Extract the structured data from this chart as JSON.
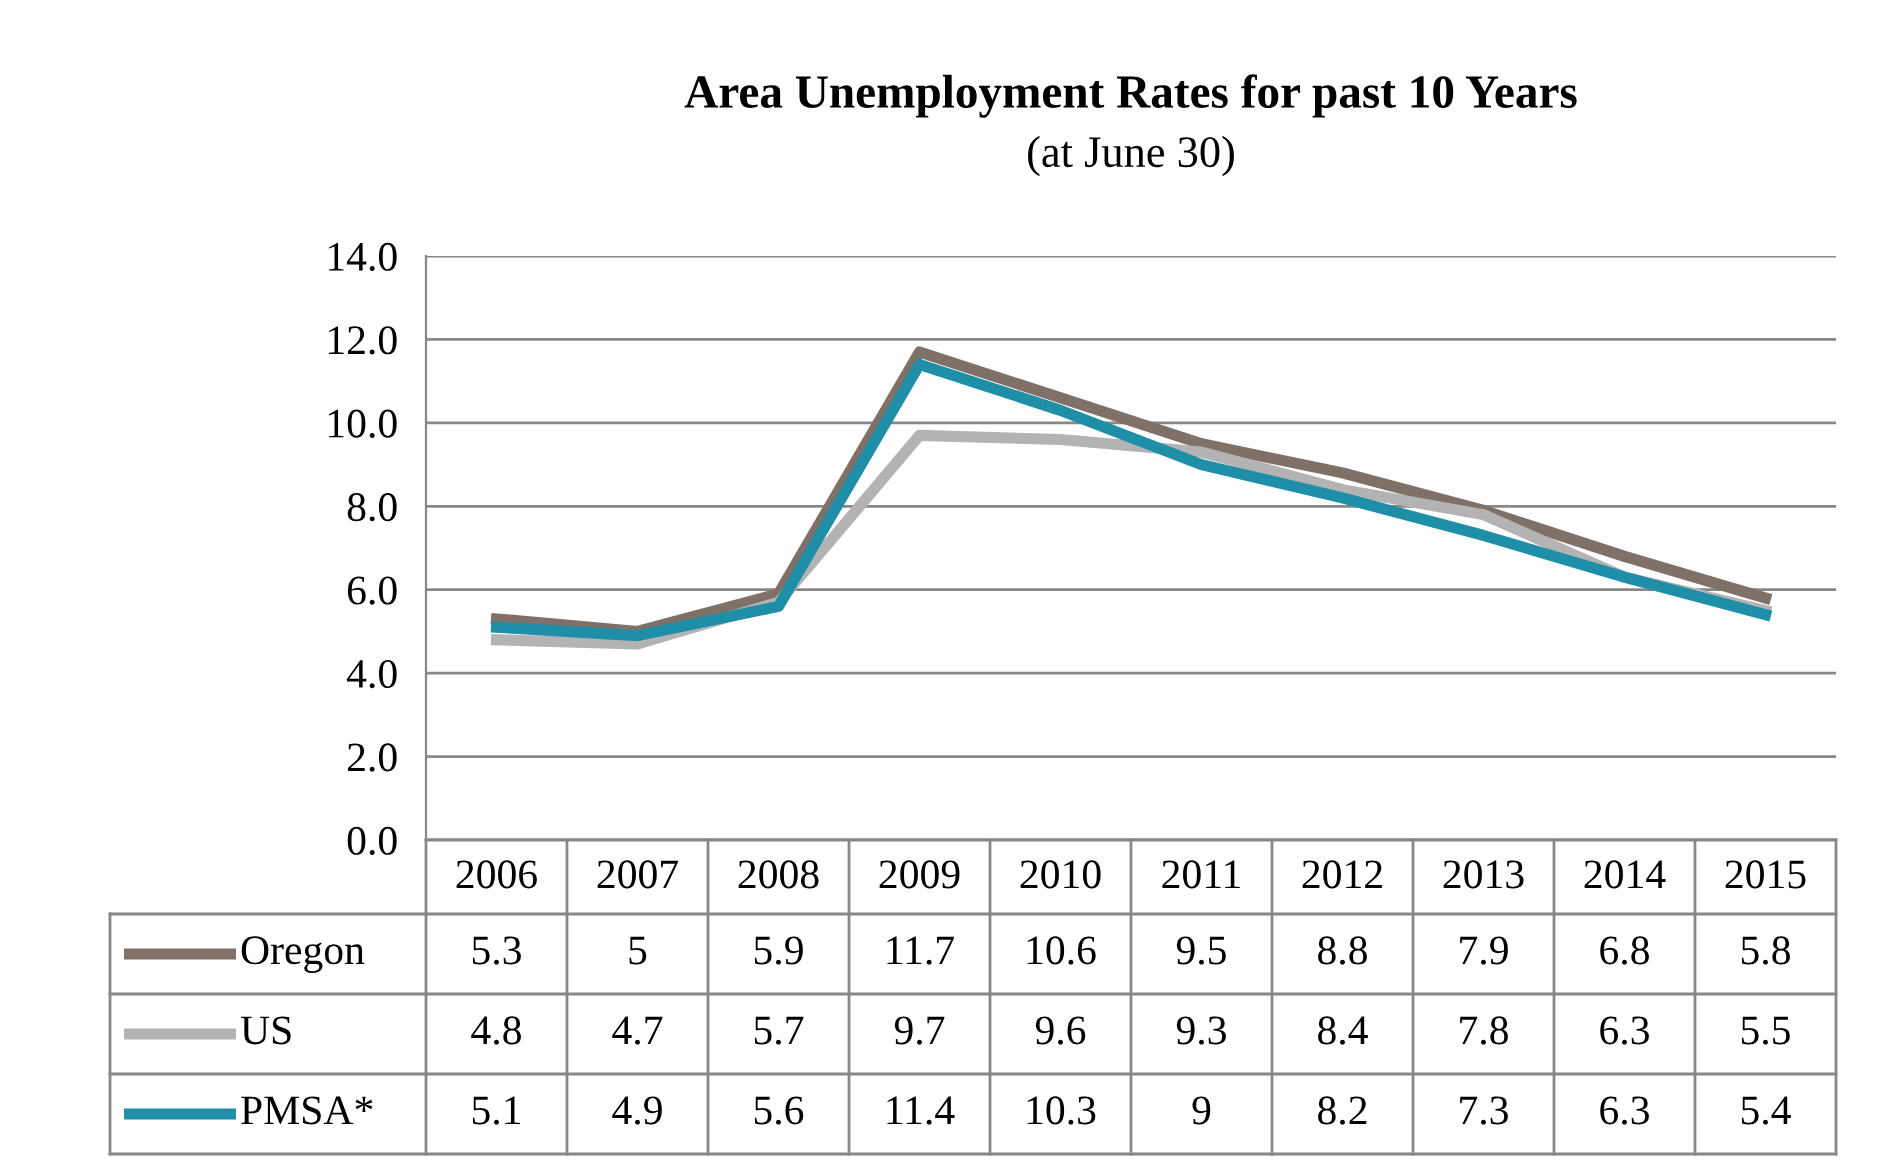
{
  "chart_data": {
    "type": "line",
    "title": "Area Unemployment Rates for past 10 Years",
    "subtitle": "(at June 30)",
    "categories": [
      "2006",
      "2007",
      "2008",
      "2009",
      "2010",
      "2011",
      "2012",
      "2013",
      "2014",
      "2015"
    ],
    "series": [
      {
        "name": "Oregon",
        "color": "#7f7068",
        "values": [
          5.3,
          5,
          5.9,
          11.7,
          10.6,
          9.5,
          8.8,
          7.9,
          6.8,
          5.8
        ]
      },
      {
        "name": "US",
        "color": "#b3b3b3",
        "values": [
          4.8,
          4.7,
          5.7,
          9.7,
          9.6,
          9.3,
          8.4,
          7.8,
          6.3,
          5.5
        ]
      },
      {
        "name": "PMSA*",
        "color": "#1f8fa8",
        "values": [
          5.1,
          4.9,
          5.6,
          11.4,
          10.3,
          9,
          8.2,
          7.3,
          6.3,
          5.4
        ]
      }
    ],
    "ylim": [
      0,
      14
    ],
    "yticks": [
      {
        "value": 0,
        "label": "0.0"
      },
      {
        "value": 2,
        "label": "2.0"
      },
      {
        "value": 4,
        "label": "4.0"
      },
      {
        "value": 6,
        "label": "6.0"
      },
      {
        "value": 8,
        "label": "8.0"
      },
      {
        "value": 10,
        "label": "10.0"
      },
      {
        "value": 12,
        "label": "12.0"
      },
      {
        "value": 14,
        "label": "14.0"
      }
    ],
    "grid": "y",
    "legend": "bottom",
    "data_labels": true,
    "line_style": "solid",
    "marker": "none"
  }
}
